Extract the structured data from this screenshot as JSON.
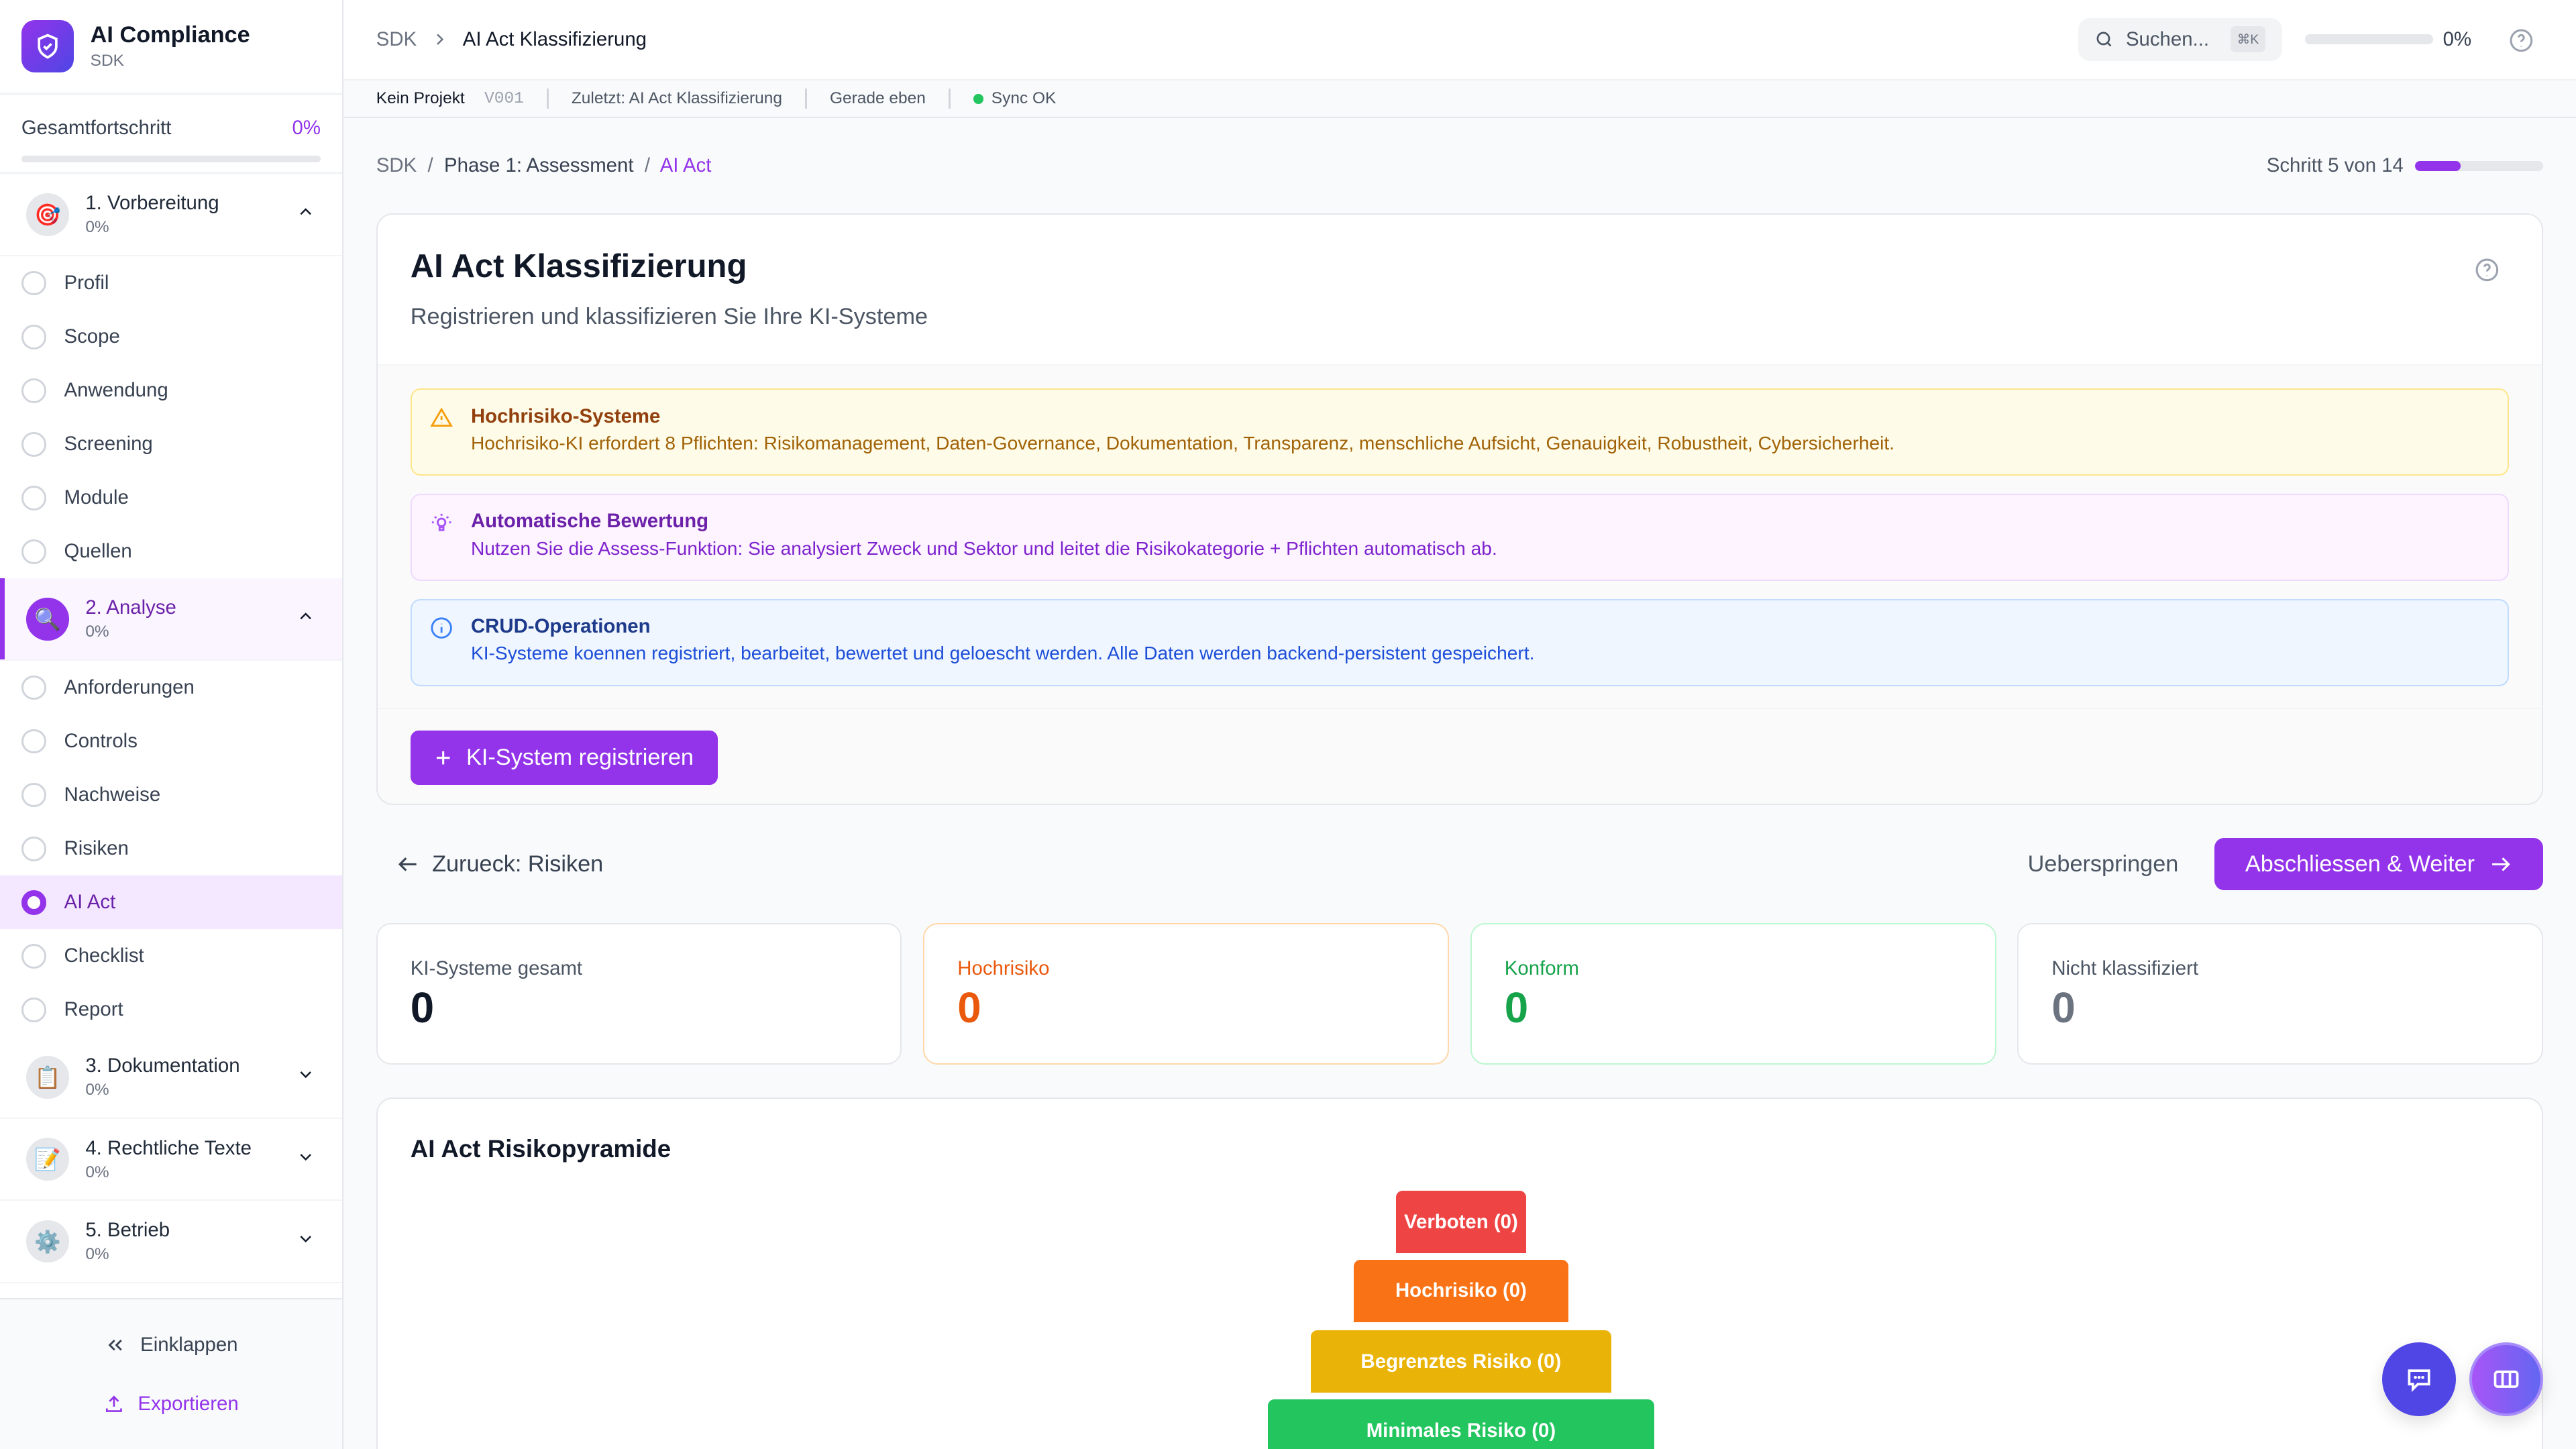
{
  "sidebar": {
    "brand": {
      "title": "AI Compliance",
      "subtitle": "SDK"
    },
    "progress": {
      "label": "Gesamtfortschritt",
      "value": "0%",
      "fraction": 0
    },
    "phases": [
      {
        "title": "1. Vorbereitung",
        "pct": "0%",
        "icon": "🎯",
        "expanded": true,
        "steps": [
          "Profil",
          "Scope",
          "Anwendung",
          "Screening",
          "Module",
          "Quellen"
        ]
      },
      {
        "title": "2. Analyse",
        "pct": "0%",
        "icon": "🔍",
        "expanded": true,
        "active": true,
        "steps": [
          "Anforderungen",
          "Controls",
          "Nachweise",
          "Risiken",
          "AI Act",
          "Checklist",
          "Report"
        ]
      },
      {
        "title": "3. Dokumentation",
        "pct": "0%",
        "icon": "📋",
        "expanded": false
      },
      {
        "title": "4. Rechtliche Texte",
        "pct": "0%",
        "icon": "📝",
        "expanded": false
      },
      {
        "title": "5. Betrieb",
        "pct": "0%",
        "icon": "⚙️",
        "expanded": false
      }
    ],
    "active_step": "AI Act",
    "collapse_label": "Einklappen",
    "export_label": "Exportieren"
  },
  "header": {
    "crumb_root": "SDK",
    "crumb_current": "AI Act Klassifizierung",
    "search_placeholder": "Suchen...",
    "search_shortcut": "⌘K",
    "progress": "0%",
    "progress_fraction": 0
  },
  "infobar": {
    "project": "Kein Projekt",
    "version": "V001",
    "last": "Zuletzt: AI Act Klassifizierung",
    "time": "Gerade eben",
    "sync": "Sync OK"
  },
  "breadcrumb": {
    "items": [
      "SDK",
      "Phase 1: Assessment",
      "AI Act"
    ],
    "step_label": "Schritt 5 von 14",
    "step_fraction": 0.357
  },
  "main": {
    "title": "AI Act Klassifizierung",
    "subtitle": "Registrieren und klassifizieren Sie Ihre KI-Systeme",
    "alerts": [
      {
        "title": "Hochrisiko-Systeme",
        "text": "Hochrisiko-KI erfordert 8 Pflichten: Risikomanagement, Daten-Governance, Dokumentation, Transparenz, menschliche Aufsicht, Genauigkeit, Robustheit, Cybersicherheit."
      },
      {
        "title": "Automatische Bewertung",
        "text": "Nutzen Sie die Assess-Funktion: Sie analysiert Zweck und Sektor und leitet die Risikokategorie + Pflichten automatisch ab."
      },
      {
        "title": "CRUD-Operationen",
        "text": "KI-Systeme koennen registriert, bearbeitet, bewertet und geloescht werden. Alle Daten werden backend-persistent gespeichert."
      }
    ],
    "register_label": "KI-System registrieren"
  },
  "nav": {
    "back": "Zurueck: Risiken",
    "skip": "Ueberspringen",
    "next": "Abschliessen & Weiter"
  },
  "stats": [
    {
      "label": "KI-Systeme gesamt",
      "value": "0",
      "color": "#111827"
    },
    {
      "label": "Hochrisiko",
      "value": "0",
      "color": "#ea580c"
    },
    {
      "label": "Konform",
      "value": "0",
      "color": "#16a34a"
    },
    {
      "label": "Nicht klassifiziert",
      "value": "0",
      "color": "#6b7280"
    }
  ],
  "pyramid": {
    "title": "AI Act Risikopyramide",
    "tiers": [
      {
        "label": "Verboten (0)",
        "color": "#ef4444"
      },
      {
        "label": "Hochrisiko (0)",
        "color": "#f97316"
      },
      {
        "label": "Begrenztes Risiko (0)",
        "color": "#eab308"
      },
      {
        "label": "Minimales Risiko (0)",
        "color": "#22c55e"
      }
    ]
  },
  "colors": {
    "accent": "#9333ea",
    "chat_fab": "#4f46e5"
  }
}
